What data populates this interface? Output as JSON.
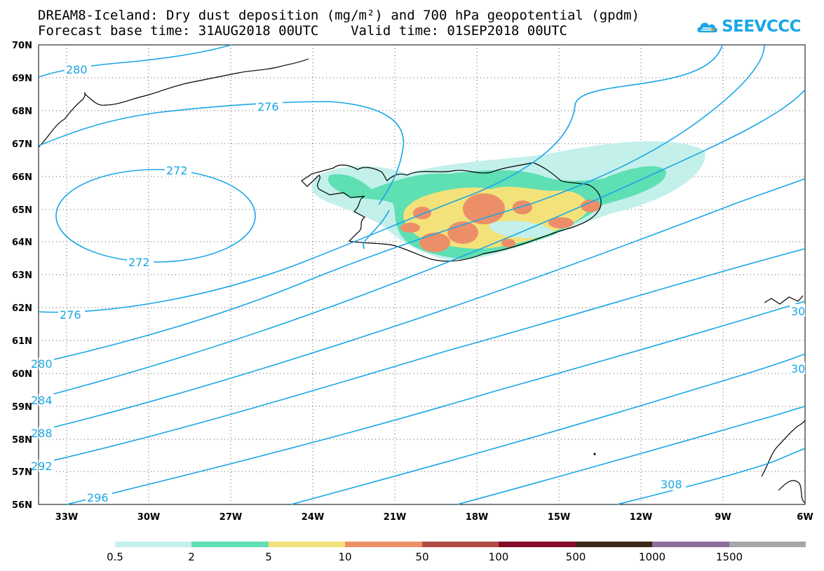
{
  "header": {
    "title_line1": "DREAM8-Iceland: Dry dust deposition (mg/m²) and 700 hPa geopotential (gpdm)",
    "title_line2": "Forecast base time: 31AUG2018 00UTC    Valid time: 01SEP2018 00UTC",
    "logo_text": "SEEVCCC",
    "logo_icon": "cloud-icon"
  },
  "map": {
    "lat_labels": [
      "70N",
      "69N",
      "68N",
      "67N",
      "66N",
      "65N",
      "64N",
      "63N",
      "62N",
      "61N",
      "60N",
      "59N",
      "58N",
      "57N",
      "56N"
    ],
    "lon_labels": [
      "33W",
      "30W",
      "27W",
      "24W",
      "21W",
      "18W",
      "15W",
      "12W",
      "9W",
      "6W"
    ],
    "lat_range": [
      56,
      70
    ],
    "lon_range": [
      -34,
      -6
    ],
    "grid": "dotted",
    "contour_color": "#1aa6e6",
    "contour_labels": [
      "280",
      "276",
      "272",
      "272",
      "276",
      "280",
      "284",
      "288",
      "292",
      "296",
      "308",
      "30",
      "30"
    ]
  },
  "legend": {
    "labels": [
      "0.5",
      "2",
      "5",
      "10",
      "50",
      "100",
      "500",
      "1000",
      "1500"
    ],
    "colors": [
      "#c3f0ea",
      "#5fdfb4",
      "#f3e27a",
      "#ec8f68",
      "#b04b44",
      "#860c2a",
      "#3b2717",
      "#8c6e9c",
      "#a6a6a6"
    ]
  }
}
